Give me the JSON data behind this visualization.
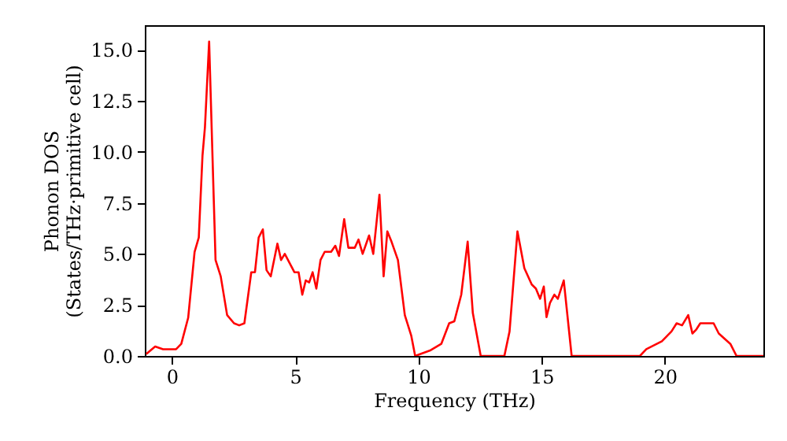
{
  "chart_data": {
    "type": "line",
    "xlabel": "Frequency (THz)",
    "ylabel": "Phonon DOS\n(States/THz·primitive cell)",
    "xlim": [
      -1.1,
      24.0
    ],
    "ylim": [
      0,
      16.2
    ],
    "xticks": [
      0,
      5,
      10,
      15,
      20
    ],
    "yticks": [
      {
        "value": 0,
        "label": "0.0"
      },
      2.5,
      {
        "value": 5,
        "label": "5.0"
      },
      7.5,
      {
        "value": 10,
        "label": "10.0"
      },
      12.5,
      {
        "value": 15,
        "label": "15.0"
      }
    ],
    "grid": false,
    "marker": "none",
    "line_style": "solid",
    "series": [
      {
        "color": "#ff0000",
        "x": [
          -1.04,
          -0.68,
          -0.36,
          0.17,
          0.38,
          0.66,
          0.92,
          1.09,
          1.24,
          1.34,
          1.51,
          1.77,
          1.98,
          2.24,
          2.52,
          2.73,
          2.94,
          3.22,
          3.37,
          3.52,
          3.69,
          3.84,
          4.01,
          4.28,
          4.43,
          4.58,
          4.97,
          5.14,
          5.29,
          5.43,
          5.57,
          5.71,
          5.86,
          6.03,
          6.2,
          6.46,
          6.63,
          6.78,
          6.99,
          7.16,
          7.42,
          7.57,
          7.74,
          8.0,
          8.17,
          8.42,
          8.59,
          8.74,
          8.91,
          9.17,
          9.45,
          9.71,
          9.87,
          10.5,
          10.93,
          11.25,
          11.46,
          11.74,
          12.0,
          12.21,
          12.53,
          13.49,
          13.7,
          14.02,
          14.3,
          14.6,
          14.77,
          14.94,
          15.09,
          15.2,
          15.34,
          15.52,
          15.66,
          15.9,
          16.22,
          18.99,
          19.25,
          19.88,
          20.27,
          20.48,
          20.7,
          20.95,
          21.12,
          21.28,
          21.44,
          21.98,
          22.19,
          22.66,
          22.91,
          24.0
        ],
        "values": [
          0.1,
          0.46,
          0.33,
          0.33,
          0.59,
          1.87,
          5.1,
          5.8,
          9.8,
          11.2,
          15.4,
          4.7,
          3.9,
          2.0,
          1.6,
          1.5,
          1.6,
          4.1,
          4.1,
          5.8,
          6.2,
          4.2,
          3.9,
          5.5,
          4.7,
          5.0,
          4.1,
          4.1,
          3.0,
          3.7,
          3.6,
          4.1,
          3.3,
          4.7,
          5.1,
          5.1,
          5.4,
          4.9,
          6.7,
          5.3,
          5.3,
          5.7,
          5.0,
          5.9,
          5.0,
          7.9,
          3.9,
          6.1,
          5.6,
          4.7,
          2.0,
          1.0,
          0,
          0.28,
          0.59,
          1.6,
          1.7,
          3.0,
          5.6,
          2.1,
          0,
          0,
          1.2,
          6.1,
          4.3,
          3.5,
          3.3,
          2.8,
          3.4,
          1.9,
          2.6,
          3.0,
          2.8,
          3.7,
          0,
          0,
          0.33,
          0.72,
          1.2,
          1.6,
          1.5,
          2.0,
          1.1,
          1.3,
          1.6,
          1.6,
          1.1,
          0.59,
          0,
          0
        ]
      }
    ]
  }
}
